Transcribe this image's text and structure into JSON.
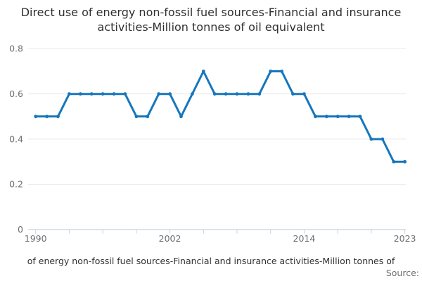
{
  "header": {
    "title": "Direct use of energy non-fossil fuel sources-Financial and insurance activities-Million tonnes of oil equivalent"
  },
  "chart_data": {
    "type": "line",
    "title": "Direct use of energy non-fossil fuel sources-Financial and insurance activities-Million tonnes of oil equivalent",
    "xlabel": "",
    "ylabel": "",
    "x": [
      1990,
      1991,
      1992,
      1993,
      1994,
      1995,
      1996,
      1997,
      1998,
      1999,
      2000,
      2001,
      2002,
      2003,
      2004,
      2005,
      2006,
      2007,
      2008,
      2009,
      2010,
      2011,
      2012,
      2013,
      2014,
      2015,
      2016,
      2017,
      2018,
      2019,
      2020,
      2021,
      2022,
      2023
    ],
    "values": [
      0.5,
      0.5,
      0.5,
      0.6,
      0.6,
      0.6,
      0.6,
      0.6,
      0.6,
      0.5,
      0.5,
      0.6,
      0.6,
      0.5,
      0.6,
      0.7,
      0.6,
      0.6,
      0.6,
      0.6,
      0.6,
      0.7,
      0.7,
      0.6,
      0.6,
      0.5,
      0.5,
      0.5,
      0.5,
      0.5,
      0.4,
      0.4,
      0.3,
      0.3
    ],
    "ylim": [
      0,
      0.8
    ],
    "yticks": [
      0,
      0.2,
      0.4,
      0.6,
      0.8
    ],
    "ytick_labels": [
      "0",
      "0.2",
      "0.4",
      "0.6",
      "0.8"
    ],
    "xtick_years": [
      1990,
      1993,
      1996,
      1999,
      2002,
      2005,
      2008,
      2011,
      2014,
      2017,
      2020,
      2023
    ],
    "xtick_labeled_years": [
      1990,
      2002,
      2014,
      2023
    ],
    "grid": true,
    "legend_position": "none",
    "line_color": "#1776bc",
    "marker": "circle"
  },
  "footer": {
    "caption": "of energy non-fossil fuel sources-Financial and insurance activities-Million tonnes of",
    "source_label": "Source:"
  },
  "colors": {
    "accent": "#1776bc",
    "gridline": "#e9e9e9",
    "axis": "#c9d3e2",
    "tick_label": "#6e6e6e",
    "title_text": "#2f2f2f"
  }
}
